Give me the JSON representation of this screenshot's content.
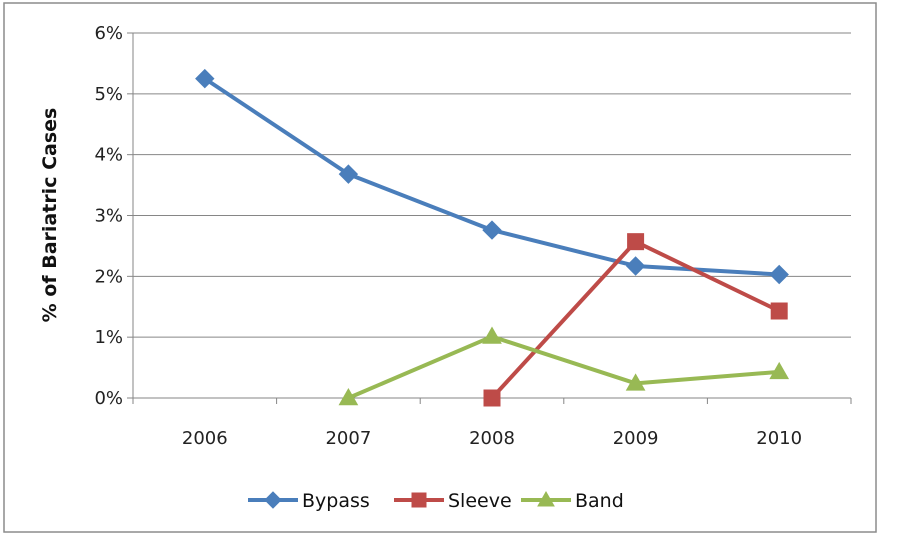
{
  "chart_data": {
    "type": "line",
    "title": "",
    "xlabel": "",
    "ylabel": "% of Bariatric Cases",
    "categories": [
      "2006",
      "2007",
      "2008",
      "2009",
      "2010"
    ],
    "ylim": [
      0,
      6
    ],
    "yticks": [
      0,
      1,
      2,
      3,
      4,
      5,
      6
    ],
    "ytick_labels": [
      "0%",
      "1%",
      "2%",
      "3%",
      "4%",
      "5%",
      "6%"
    ],
    "grid": true,
    "legend_position": "bottom",
    "series": [
      {
        "name": "Bypass",
        "color": "#4A7EBB",
        "marker": "diamond",
        "values": [
          5.25,
          3.68,
          2.76,
          2.17,
          2.03
        ]
      },
      {
        "name": "Sleeve",
        "color": "#BE4B48",
        "marker": "square",
        "values": [
          null,
          null,
          0.0,
          2.57,
          1.43
        ]
      },
      {
        "name": "Band",
        "color": "#98B954",
        "marker": "triangle",
        "values": [
          null,
          0.0,
          1.01,
          0.24,
          0.43
        ]
      }
    ]
  }
}
